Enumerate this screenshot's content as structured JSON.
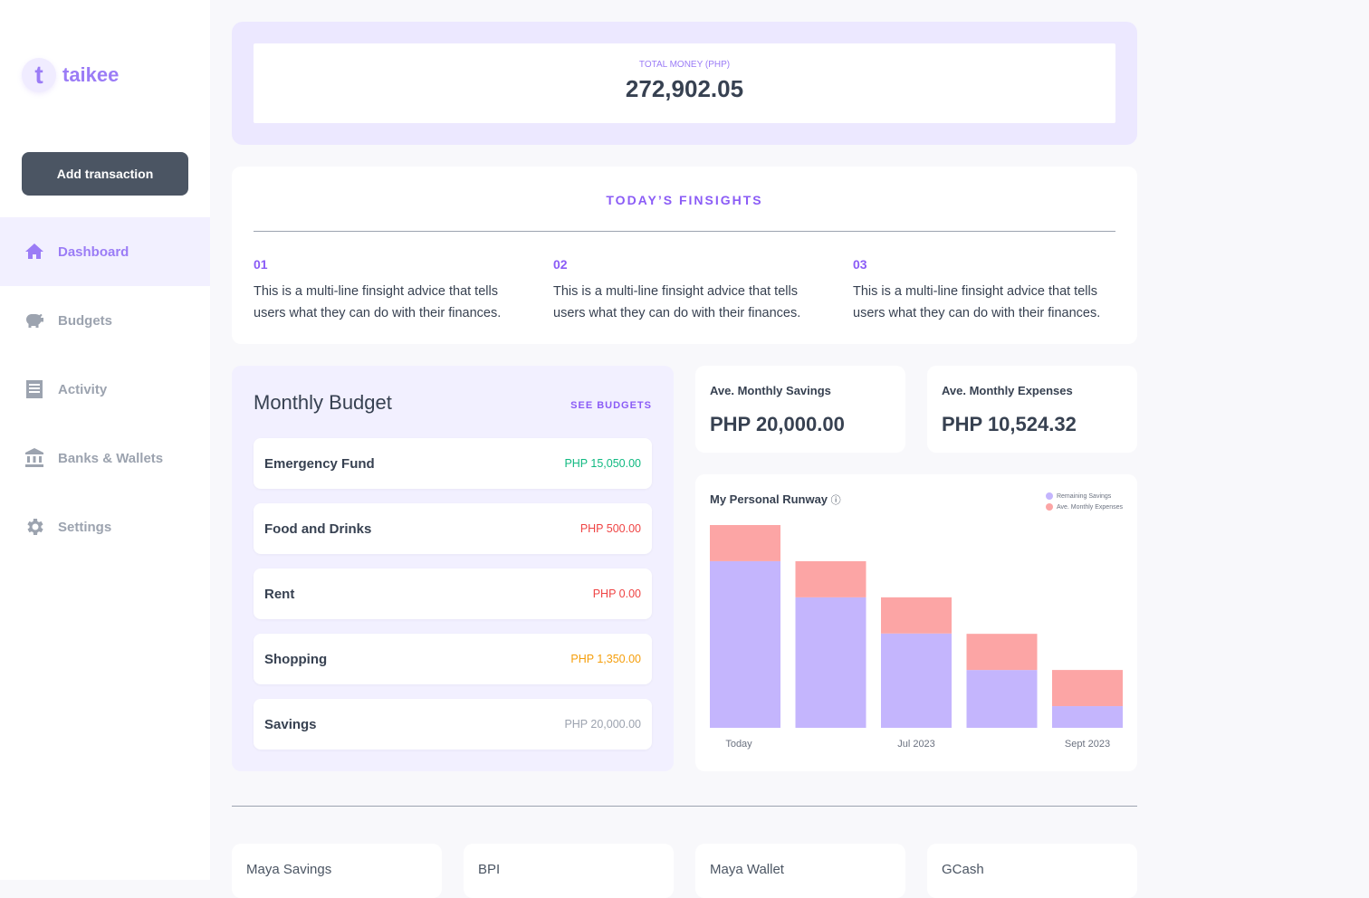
{
  "brand": {
    "name": "taikee",
    "mark": "t"
  },
  "sidebar": {
    "add_button": "Add transaction",
    "items": [
      {
        "label": "Dashboard",
        "icon": "home-icon"
      },
      {
        "label": "Budgets",
        "icon": "piggy-bank-icon"
      },
      {
        "label": "Activity",
        "icon": "receipt-icon"
      },
      {
        "label": "Banks & Wallets",
        "icon": "bank-icon"
      },
      {
        "label": "Settings",
        "icon": "gear-icon"
      }
    ]
  },
  "total": {
    "label": "TOTAL MONEY (PHP)",
    "value": "272,902.05"
  },
  "finsights": {
    "title": "TODAY’S FINSIGHTS",
    "items": [
      {
        "num": "01",
        "text": "This is a multi-line finsight advice that tells users what they can do with their finances."
      },
      {
        "num": "02",
        "text": "This is a multi-line finsight advice that tells users what they can do with their finances."
      },
      {
        "num": "03",
        "text": "This is a multi-line finsight advice that tells users what they can do with their finances."
      }
    ]
  },
  "budget": {
    "title": "Monthly Budget",
    "see_link": "SEE BUDGETS",
    "items": [
      {
        "name": "Emergency Fund",
        "amount": "PHP 15,050.00",
        "color": "#10b981"
      },
      {
        "name": "Food and Drinks",
        "amount": "PHP 500.00",
        "color": "#ef4444"
      },
      {
        "name": "Rent",
        "amount": "PHP 0.00",
        "color": "#ef4444"
      },
      {
        "name": "Shopping",
        "amount": "PHP 1,350.00",
        "color": "#f59e0b"
      },
      {
        "name": "Savings",
        "amount": "PHP 20,000.00",
        "color": "#9ca3af"
      }
    ]
  },
  "stats": {
    "savings": {
      "label": "Ave. Monthly Savings",
      "value": "PHP 20,000.00"
    },
    "expenses": {
      "label": "Ave. Monthly Expenses",
      "value": "PHP 10,524.32"
    }
  },
  "chart_data": {
    "type": "bar",
    "stacked": true,
    "title": "My Personal Runway",
    "categories": [
      "Today",
      "",
      "Jul 2023",
      "",
      "Sept 2023"
    ],
    "series": [
      {
        "name": "Remaining Savings",
        "color": "#c4b5fd",
        "values": [
          48.4,
          37.9,
          27.4,
          16.8,
          6.3
        ]
      },
      {
        "name": "Ave. Monthly Expenses",
        "color": "#fca5a5",
        "values": [
          10.5,
          10.5,
          10.5,
          10.5,
          10.5
        ]
      }
    ],
    "ylim": [
      0,
      58.9
    ],
    "grid": false,
    "legend": "top-right"
  },
  "accounts": [
    "Maya Savings",
    "BPI",
    "Maya Wallet",
    "GCash"
  ]
}
